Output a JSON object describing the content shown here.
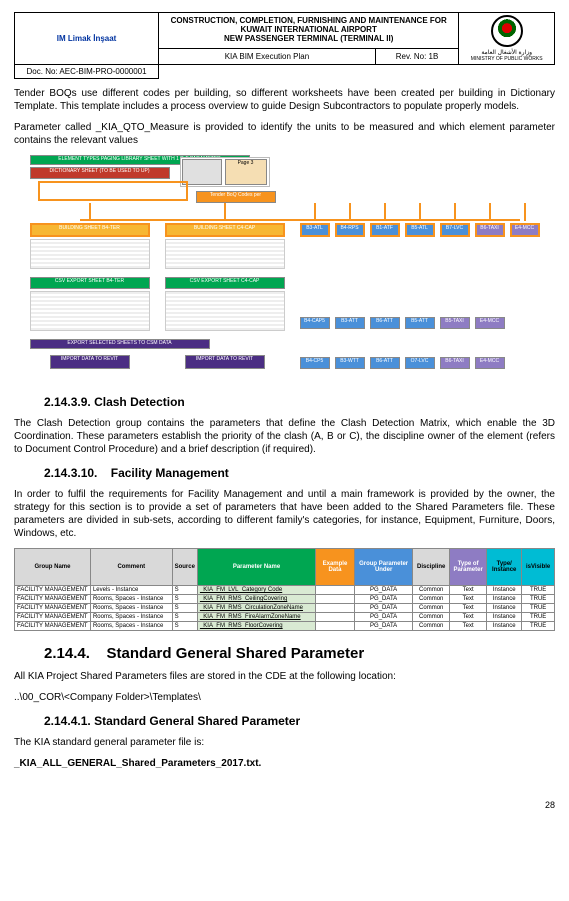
{
  "header": {
    "company_logo_text": "Limak İnşaat",
    "project_title_l1": "CONSTRUCTION, COMPLETION, FURNISHING AND MAINTENANCE FOR",
    "project_title_l2": "KUWAIT INTERNATIONAL AIRPORT",
    "project_title_l3": "NEW PASSENGER TERMINAL (TERMINAL II)",
    "doc_no_label": "Doc. No: AEC-BIM-PRO-0000001",
    "doc_title": "KIA BIM Execution Plan",
    "rev_no": "Rev. No: 1B",
    "ministry_ar": "وزارة الأشغال العامة",
    "ministry_en": "MINISTRY OF PUBLIC WORKS"
  },
  "paragraphs": {
    "p1": "Tender BOQs use different codes per building, so different worksheets have been created per building in Dictionary Template. This template includes a process overview to guide Design Subcontractors to populate properly models.",
    "p2": "Parameter called _KIA_QTO_Measure is provided to identify the units to be measured and which element parameter contains the relevant values"
  },
  "diagram": {
    "top_box_label": "ELEMENT TYPES PAGING LIBRARY SHEET WITH 1 D-F PARAMETER",
    "dict_label": "DICTIONARY SHEET (TO BE USED TO UP)",
    "page_label": "Page 3",
    "tender_box": "Tender BoQ Codes per",
    "row1": [
      "BUILDING SHEET B4-TER",
      "BUILDING SHEET C4-CAP",
      "B3-ATL",
      "B4-RPS",
      "B1-ATF",
      "B5-ATL",
      "B7-LVC",
      "B6-TAXI",
      "E4-MCC"
    ],
    "row1_colors": [
      "#f7b733",
      "#f7b733",
      "#4a90d9",
      "#4a90d9",
      "#4a90d9",
      "#4a90d9",
      "#4a90d9",
      "#8e7cc3",
      "#8e7cc3"
    ],
    "row2_a": "CSV EXPORT SHEET B4-TER",
    "row2_b": "CSV EXPORT SHEET C4-CAP",
    "row3": [
      "B4-CAP5",
      "B3-ATT",
      "B6-ATT",
      "B5-ATT",
      "B5-TAXI",
      "E4-MCC"
    ],
    "export_label": "EXPORT SELECTED SHEETS TO CSM DATA",
    "import_a": "IMPORT DATA TO REVIT",
    "import_b": "IMPORT DATA TO REVIT",
    "row4": [
      "B4-CP5",
      "B3-WTT",
      "B6-ATT",
      "O7-LVC",
      "B6-TAXI",
      "E4-MCC"
    ],
    "green": "#00a651",
    "orange": "#f7931e",
    "purple": "#4b2e83",
    "blue": "#4a90d9",
    "lpurple": "#8e7cc3",
    "red": "#c0392b",
    "grey_grid": "#e0e0e0"
  },
  "sections": {
    "s1_num": "2.14.3.9.",
    "s1_title": "Clash Detection",
    "s1_body": "The Clash Detection group contains the parameters that define the Clash Detection Matrix, which enable the 3D Coordination. These parameters establish the priority of the clash (A, B or C), the discipline owner of the element (refers to Document Control Procedure) and a brief description (if required).",
    "s2_num": "2.14.3.10.",
    "s2_title": "Facility Management",
    "s2_body": "In order to fulfil the requirements for Facility Management and until a main framework is provided by the owner, the strategy for this section is to provide a set of parameters that have been added to the Shared Parameters file. These parameters are divided in sub-sets, according to different family's categories, for instance, Equipment, Furniture, Doors, Windows, etc.",
    "s3_num": "2.14.4.",
    "s3_title": "Standard General Shared Parameter",
    "s3_body": "All KIA Project Shared Parameters files are stored in the CDE at the following location:",
    "s3_path": "..\\00_COR\\<Company Folder>\\Templates\\",
    "s4_num": "2.14.4.1.",
    "s4_title": "Standard General Shared Parameter",
    "s4_body": "The KIA standard general parameter file is:",
    "s4_file": "_KIA_ALL_GENERAL_Shared_Parameters_2017.txt."
  },
  "fm_table": {
    "headers": [
      "Group Name",
      "Comment",
      "Source",
      "Parameter Name",
      "Example Data",
      "Group Parameter Under",
      "Discipline",
      "Type of Parameter",
      "Type/ Instance",
      "isVisible"
    ],
    "header_colors": [
      "#d9d9d9",
      "#d9d9d9",
      "#d9d9d9",
      "#00a651",
      "#f7931e",
      "#4a90d9",
      "#d9d9d9",
      "#8e7cc3",
      "#00bcd4",
      "#00bcd4"
    ],
    "rows": [
      [
        "FACILITY MANAGEMENT",
        "Levels - Instance",
        "S",
        "_KIA_FM_LVL_Category Code",
        "",
        "PG_DATA",
        "Common",
        "Text",
        "Instance",
        "TRUE"
      ],
      [
        "FACILITY MANAGEMENT",
        "Rooms, Spaces - Instance",
        "S",
        "_KIA_FM_RMS_CeilingCovering",
        "",
        "PG_DATA",
        "Common",
        "Text",
        "Instance",
        "TRUE"
      ],
      [
        "FACILITY MANAGEMENT",
        "Rooms, Spaces - Instance",
        "S",
        "_KIA_FM_RMS_CirculationZoneName",
        "",
        "PG_DATA",
        "Common",
        "Text",
        "Instance",
        "TRUE"
      ],
      [
        "FACILITY MANAGEMENT",
        "Rooms, Spaces - Instance",
        "S",
        "_KIA_FM_RMS_FireAlarmZoneName",
        "",
        "PG_DATA",
        "Common",
        "Text",
        "Instance",
        "TRUE"
      ],
      [
        "FACILITY MANAGEMENT",
        "Rooms, Spaces - Instance",
        "S",
        "_KIA_FM_RMS_FloorCovering",
        "",
        "PG_DATA",
        "Common",
        "Text",
        "Instance",
        "TRUE"
      ]
    ]
  },
  "page_number": "28"
}
